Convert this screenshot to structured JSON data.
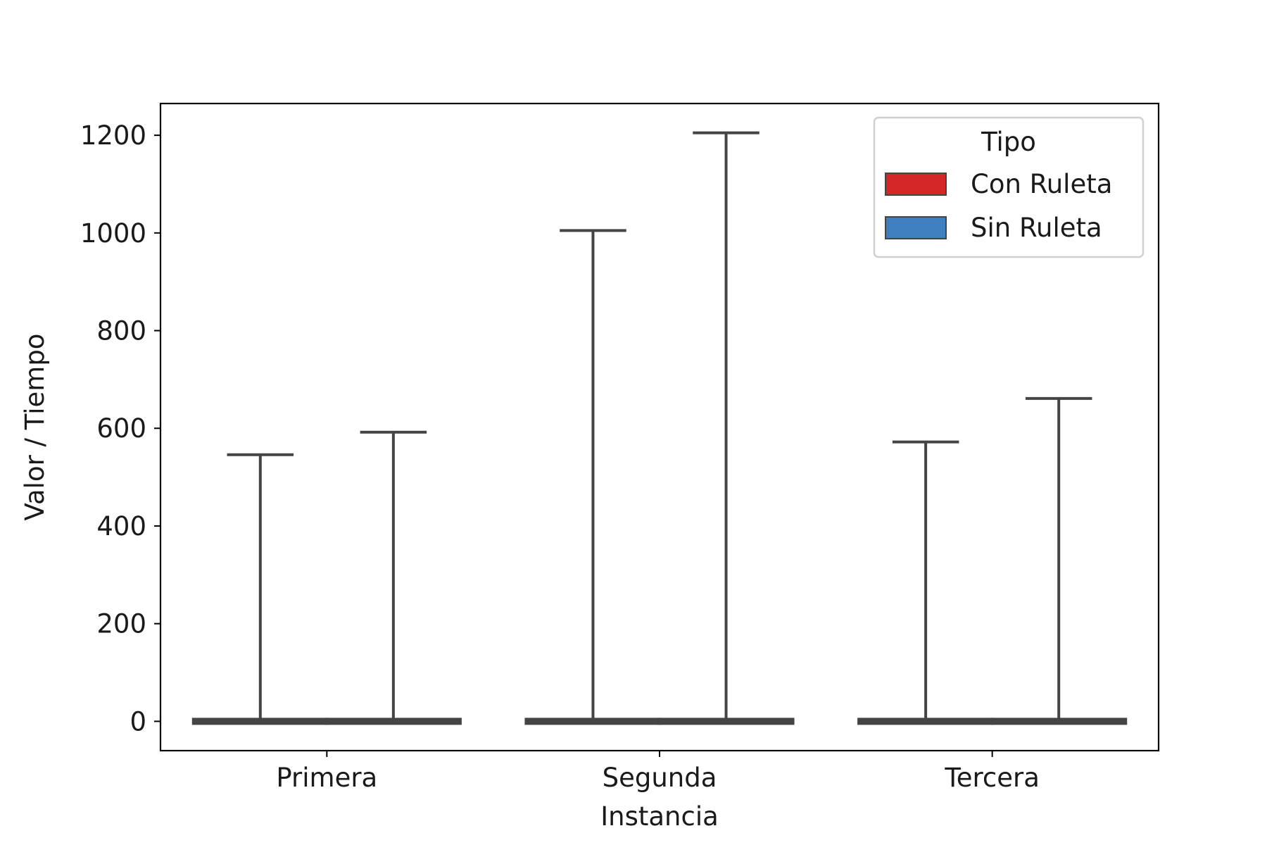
{
  "chart_data": {
    "type": "box",
    "title": "",
    "xlabel": "Instancia",
    "ylabel": "Valor / Tiempo",
    "categories": [
      "Primera",
      "Segunda",
      "Tercera"
    ],
    "ylim": [
      -60,
      1265
    ],
    "yticks": [
      0,
      200,
      400,
      600,
      800,
      1000,
      1200
    ],
    "legend": {
      "title": "Tipo",
      "position": "top-right"
    },
    "grid": false,
    "series": [
      {
        "name": "Con Ruleta",
        "color": "#d62728",
        "boxes": [
          {
            "category": "Primera",
            "min": 0,
            "q1": 0,
            "median": 0,
            "q3": 0,
            "max": 546
          },
          {
            "category": "Segunda",
            "min": 0,
            "q1": 0,
            "median": 0,
            "q3": 0,
            "max": 1005
          },
          {
            "category": "Tercera",
            "min": 0,
            "q1": 0,
            "median": 0,
            "q3": 0,
            "max": 572
          }
        ]
      },
      {
        "name": "Sin Ruleta",
        "color": "#3f7fbf",
        "boxes": [
          {
            "category": "Primera",
            "min": 0,
            "q1": 0,
            "median": 0,
            "q3": 0,
            "max": 592
          },
          {
            "category": "Segunda",
            "min": 0,
            "q1": 0,
            "median": 0,
            "q3": 0,
            "max": 1205
          },
          {
            "category": "Tercera",
            "min": 0,
            "q1": 0,
            "median": 0,
            "q3": 0,
            "max": 661
          }
        ]
      }
    ]
  }
}
